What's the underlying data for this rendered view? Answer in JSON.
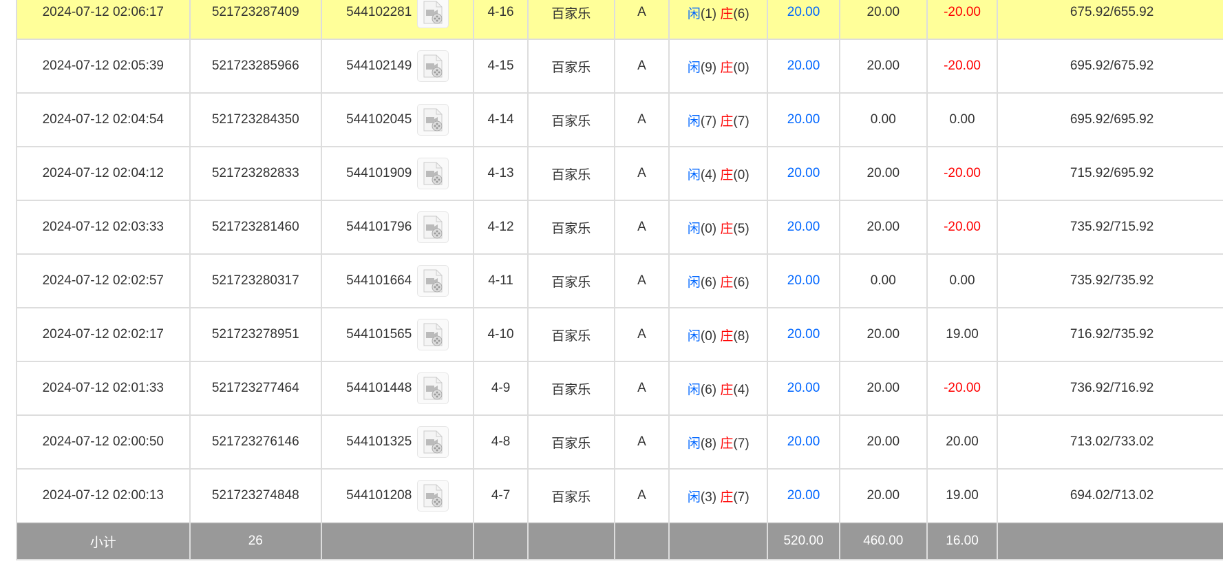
{
  "rows": [
    {
      "time": "2024-07-12 02:06:17",
      "bet_id": "521723287409",
      "round_id": "544102281",
      "table": "4-16",
      "game": "百家乐",
      "seat": "A",
      "player_label": "闲",
      "player_score": "(1)",
      "banker_label": "庄",
      "banker_score": "(6)",
      "bet": "20.00",
      "valid": "20.00",
      "win": "-20.00",
      "balance": "675.92/655.92",
      "highlight": true
    },
    {
      "time": "2024-07-12 02:05:39",
      "bet_id": "521723285966",
      "round_id": "544102149",
      "table": "4-15",
      "game": "百家乐",
      "seat": "A",
      "player_label": "闲",
      "player_score": "(9)",
      "banker_label": "庄",
      "banker_score": "(0)",
      "bet": "20.00",
      "valid": "20.00",
      "win": "-20.00",
      "balance": "695.92/675.92"
    },
    {
      "time": "2024-07-12 02:04:54",
      "bet_id": "521723284350",
      "round_id": "544102045",
      "table": "4-14",
      "game": "百家乐",
      "seat": "A",
      "player_label": "闲",
      "player_score": "(7)",
      "banker_label": "庄",
      "banker_score": "(7)",
      "bet": "20.00",
      "valid": "0.00",
      "win": "0.00",
      "balance": "695.92/695.92"
    },
    {
      "time": "2024-07-12 02:04:12",
      "bet_id": "521723282833",
      "round_id": "544101909",
      "table": "4-13",
      "game": "百家乐",
      "seat": "A",
      "player_label": "闲",
      "player_score": "(4)",
      "banker_label": "庄",
      "banker_score": "(0)",
      "bet": "20.00",
      "valid": "20.00",
      "win": "-20.00",
      "balance": "715.92/695.92"
    },
    {
      "time": "2024-07-12 02:03:33",
      "bet_id": "521723281460",
      "round_id": "544101796",
      "table": "4-12",
      "game": "百家乐",
      "seat": "A",
      "player_label": "闲",
      "player_score": "(0)",
      "banker_label": "庄",
      "banker_score": "(5)",
      "bet": "20.00",
      "valid": "20.00",
      "win": "-20.00",
      "balance": "735.92/715.92"
    },
    {
      "time": "2024-07-12 02:02:57",
      "bet_id": "521723280317",
      "round_id": "544101664",
      "table": "4-11",
      "game": "百家乐",
      "seat": "A",
      "player_label": "闲",
      "player_score": "(6)",
      "banker_label": "庄",
      "banker_score": "(6)",
      "bet": "20.00",
      "valid": "0.00",
      "win": "0.00",
      "balance": "735.92/735.92"
    },
    {
      "time": "2024-07-12 02:02:17",
      "bet_id": "521723278951",
      "round_id": "544101565",
      "table": "4-10",
      "game": "百家乐",
      "seat": "A",
      "player_label": "闲",
      "player_score": "(0)",
      "banker_label": "庄",
      "banker_score": "(8)",
      "bet": "20.00",
      "valid": "20.00",
      "win": "19.00",
      "balance": "716.92/735.92"
    },
    {
      "time": "2024-07-12 02:01:33",
      "bet_id": "521723277464",
      "round_id": "544101448",
      "table": "4-9",
      "game": "百家乐",
      "seat": "A",
      "player_label": "闲",
      "player_score": "(6)",
      "banker_label": "庄",
      "banker_score": "(4)",
      "bet": "20.00",
      "valid": "20.00",
      "win": "-20.00",
      "balance": "736.92/716.92"
    },
    {
      "time": "2024-07-12 02:00:50",
      "bet_id": "521723276146",
      "round_id": "544101325",
      "table": "4-8",
      "game": "百家乐",
      "seat": "A",
      "player_label": "闲",
      "player_score": "(8)",
      "banker_label": "庄",
      "banker_score": "(7)",
      "bet": "20.00",
      "valid": "20.00",
      "win": "20.00",
      "balance": "713.02/733.02"
    },
    {
      "time": "2024-07-12 02:00:13",
      "bet_id": "521723274848",
      "round_id": "544101208",
      "table": "4-7",
      "game": "百家乐",
      "seat": "A",
      "player_label": "闲",
      "player_score": "(3)",
      "banker_label": "庄",
      "banker_score": "(7)",
      "bet": "20.00",
      "valid": "20.00",
      "win": "19.00",
      "balance": "694.02/713.02"
    }
  ],
  "summary": {
    "label": "小计",
    "count": "26",
    "bet": "520.00",
    "valid": "460.00",
    "win": "16.00"
  },
  "colors": {
    "highlight": "#ffff99",
    "player": "#0066ff",
    "negative": "#ff0000",
    "summary_bg": "#999999"
  },
  "icons": {
    "replay": "video-file-icon"
  }
}
